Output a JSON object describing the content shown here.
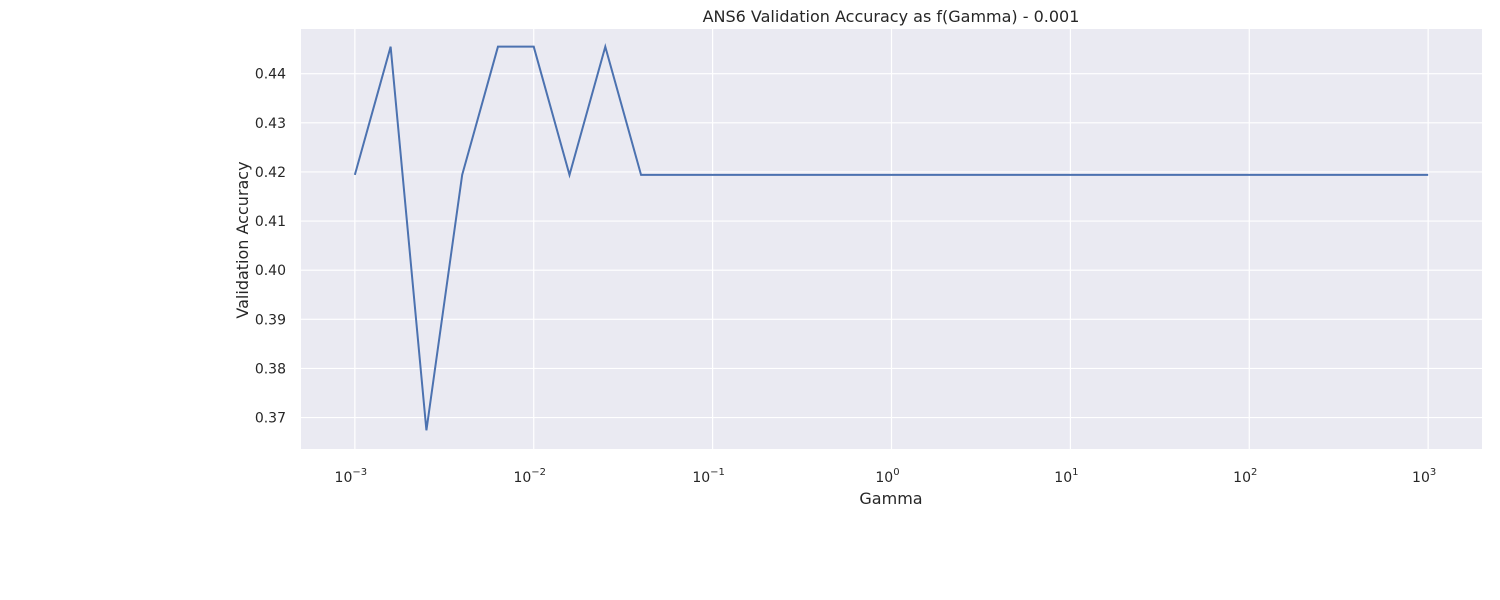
{
  "chart_data": {
    "type": "line",
    "title": "ANS6 Validation Accuracy as f(Gamma) - 0.001",
    "xlabel": "Gamma",
    "ylabel": "Validation Accuracy",
    "x_scale": "log",
    "xlim": [
      0.0005,
      2000
    ],
    "ylim": [
      0.3636,
      0.4491
    ],
    "grid": true,
    "background": "#eaeaf2",
    "grid_color": "#ffffff",
    "line_color": "#4c72b0",
    "x_ticks": [
      {
        "value": 0.001,
        "base": "10",
        "exponent": "−3"
      },
      {
        "value": 0.01,
        "base": "10",
        "exponent": "−2"
      },
      {
        "value": 0.1,
        "base": "10",
        "exponent": "−1"
      },
      {
        "value": 1,
        "base": "10",
        "exponent": "0"
      },
      {
        "value": 10,
        "base": "10",
        "exponent": "1"
      },
      {
        "value": 100,
        "base": "10",
        "exponent": "2"
      },
      {
        "value": 1000,
        "base": "10",
        "exponent": "3"
      }
    ],
    "y_ticks": [
      {
        "value": 0.37,
        "label": "0.37"
      },
      {
        "value": 0.38,
        "label": "0.38"
      },
      {
        "value": 0.39,
        "label": "0.39"
      },
      {
        "value": 0.4,
        "label": "0.40"
      },
      {
        "value": 0.41,
        "label": "0.41"
      },
      {
        "value": 0.42,
        "label": "0.42"
      },
      {
        "value": 0.43,
        "label": "0.43"
      },
      {
        "value": 0.44,
        "label": "0.44"
      }
    ],
    "series": [
      {
        "x": [
          0.001,
          0.001585,
          0.002512,
          0.003981,
          0.00631,
          0.01,
          0.01585,
          0.02512,
          0.03981,
          0.0631,
          0.1,
          1,
          10,
          100,
          1000
        ],
        "y": [
          0.4194,
          0.4455,
          0.3674,
          0.4194,
          0.4455,
          0.4455,
          0.4194,
          0.4455,
          0.4194,
          0.4194,
          0.4194,
          0.4194,
          0.4194,
          0.4194,
          0.4194
        ]
      }
    ]
  }
}
